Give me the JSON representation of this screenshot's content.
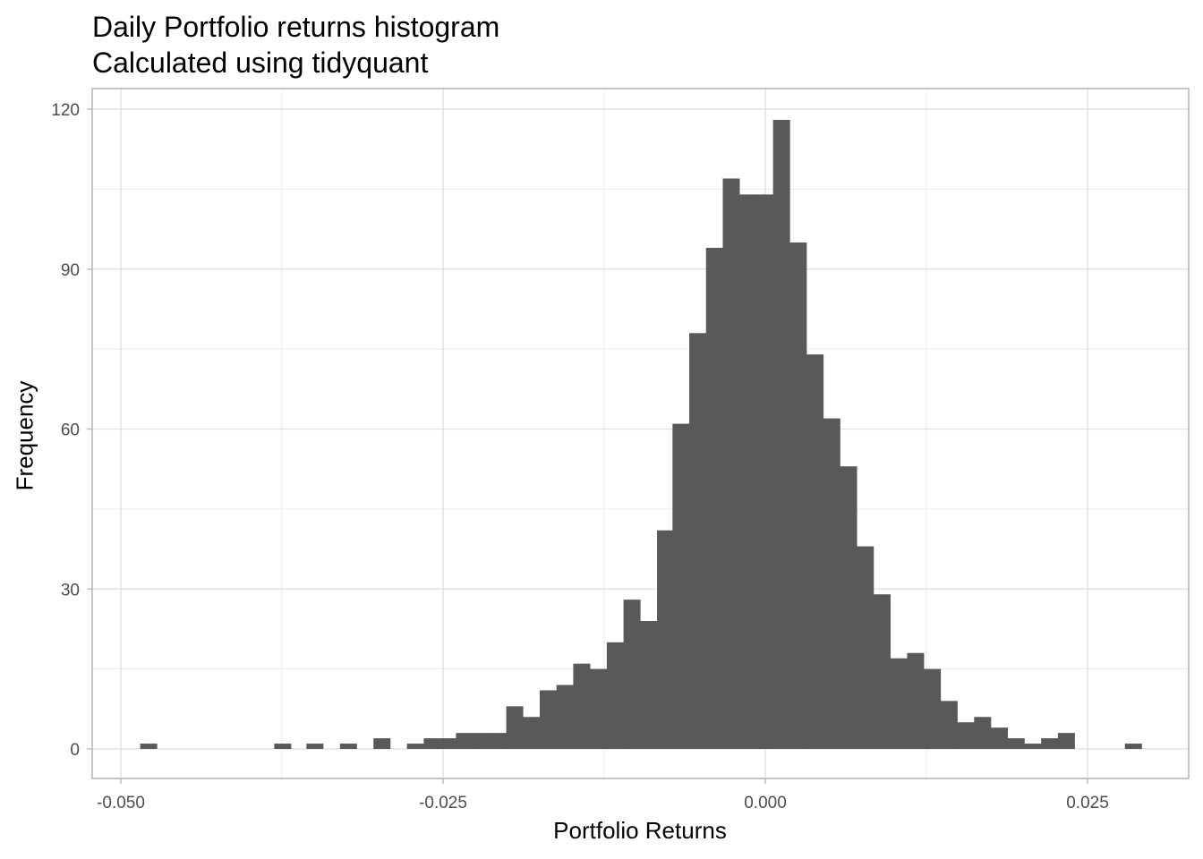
{
  "chart_data": {
    "type": "bar",
    "title": "Daily Portfolio returns histogram",
    "subtitle": "Calculated using tidyquant",
    "xlabel": "Portfolio Returns",
    "ylabel": "Frequency",
    "xlim": [
      -0.0518,
      0.03
    ],
    "ylim": [
      -5.9,
      123
    ],
    "x_ticks": [
      "-0.050",
      "-0.025",
      "0.000",
      "0.025"
    ],
    "x_tick_values": [
      -0.05,
      -0.025,
      0.0,
      0.025
    ],
    "y_ticks": [
      "0",
      "30",
      "60",
      "90",
      "120"
    ],
    "y_tick_values": [
      0,
      30,
      60,
      90,
      120
    ],
    "grid": true,
    "bar_color": "#595959",
    "bin_width": 0.0013,
    "bins": [
      {
        "x_left": -0.0485,
        "count": 1
      },
      {
        "x_left": -0.0381,
        "count": 1
      },
      {
        "x_left": -0.0356,
        "count": 1
      },
      {
        "x_left": -0.033,
        "count": 1
      },
      {
        "x_left": -0.0304,
        "count": 2
      },
      {
        "x_left": -0.0278,
        "count": 1
      },
      {
        "x_left": -0.0265,
        "count": 2
      },
      {
        "x_left": -0.0252,
        "count": 2
      },
      {
        "x_left": -0.024,
        "count": 3
      },
      {
        "x_left": -0.0227,
        "count": 3
      },
      {
        "x_left": -0.0214,
        "count": 3
      },
      {
        "x_left": -0.0201,
        "count": 8
      },
      {
        "x_left": -0.0188,
        "count": 6
      },
      {
        "x_left": -0.0175,
        "count": 11
      },
      {
        "x_left": -0.0162,
        "count": 12
      },
      {
        "x_left": -0.0149,
        "count": 16
      },
      {
        "x_left": -0.0136,
        "count": 15
      },
      {
        "x_left": -0.0123,
        "count": 20
      },
      {
        "x_left": -0.011,
        "count": 28
      },
      {
        "x_left": -0.0097,
        "count": 24
      },
      {
        "x_left": -0.0084,
        "count": 41
      },
      {
        "x_left": -0.0072,
        "count": 61
      },
      {
        "x_left": -0.0059,
        "count": 78
      },
      {
        "x_left": -0.0046,
        "count": 94
      },
      {
        "x_left": -0.0033,
        "count": 107
      },
      {
        "x_left": -0.002,
        "count": 104
      },
      {
        "x_left": -0.0007,
        "count": 104
      },
      {
        "x_left": 0.0006,
        "count": 118
      },
      {
        "x_left": 0.0019,
        "count": 95
      },
      {
        "x_left": 0.0032,
        "count": 74
      },
      {
        "x_left": 0.0045,
        "count": 62
      },
      {
        "x_left": 0.0058,
        "count": 53
      },
      {
        "x_left": 0.0071,
        "count": 38
      },
      {
        "x_left": 0.0084,
        "count": 29
      },
      {
        "x_left": 0.0097,
        "count": 17
      },
      {
        "x_left": 0.011,
        "count": 18
      },
      {
        "x_left": 0.0123,
        "count": 15
      },
      {
        "x_left": 0.0136,
        "count": 9
      },
      {
        "x_left": 0.0149,
        "count": 5
      },
      {
        "x_left": 0.0162,
        "count": 6
      },
      {
        "x_left": 0.0175,
        "count": 4
      },
      {
        "x_left": 0.0188,
        "count": 2
      },
      {
        "x_left": 0.0201,
        "count": 1
      },
      {
        "x_left": 0.0214,
        "count": 2
      },
      {
        "x_left": 0.0227,
        "count": 3
      },
      {
        "x_left": 0.0279,
        "count": 1
      }
    ]
  }
}
